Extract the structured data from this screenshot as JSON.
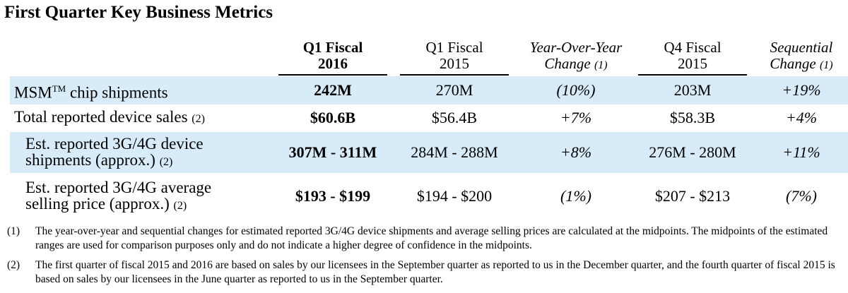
{
  "title": "First Quarter Key Business Metrics",
  "columns": [
    {
      "line1": "Q1 Fiscal",
      "line2": "2016",
      "style": "bold"
    },
    {
      "line1": "Q1 Fiscal",
      "line2": "2015",
      "style": "normal"
    },
    {
      "line1": "Year-Over-Year",
      "line2": "Change",
      "note": "(1)",
      "style": "italic"
    },
    {
      "line1": "Q4 Fiscal",
      "line2": "2015",
      "style": "normal"
    },
    {
      "line1": "Sequential",
      "line2": "Change",
      "note": "(1)",
      "style": "italic"
    }
  ],
  "rows": [
    {
      "label_main": "MSM",
      "label_sup": "TM",
      "label_rest": " chip shipments",
      "label_note": "",
      "values": [
        "242M",
        "270M",
        "(10%)",
        "203M",
        "+19%"
      ]
    },
    {
      "label_main": "Total reported device sales",
      "label_note": "(2)",
      "values": [
        "$60.6B",
        "$56.4B",
        "+7%",
        "$58.3B",
        "+4%"
      ]
    },
    {
      "label_line1": "Est. reported 3G/4G device",
      "label_line2": "shipments (approx.)",
      "label_note": "(2)",
      "values": [
        "307M - 311M",
        "284M - 288M",
        "+8%",
        "276M - 280M",
        "+11%"
      ]
    },
    {
      "label_line1": "Est. reported 3G/4G average",
      "label_line2": "selling price (approx.)",
      "label_note": "(2)",
      "values": [
        "$193 - $199",
        "$194 - $200",
        "(1%)",
        "$207 - $213",
        "(7%)"
      ]
    }
  ],
  "footnotes": [
    {
      "marker": "(1)",
      "text": "The year-over-year and sequential changes for estimated reported 3G/4G device shipments and average selling prices are calculated at the midpoints. The midpoints of the estimated ranges are used for comparison purposes only and do not indicate a higher degree of confidence in the midpoints."
    },
    {
      "marker": "(2)",
      "text": "The first quarter of fiscal 2015 and 2016 are based on sales by our licensees in the September quarter as reported to us in the December quarter, and the fourth quarter of fiscal 2015 is based on sales by our licensees in the June quarter as reported to us in the September quarter."
    }
  ]
}
